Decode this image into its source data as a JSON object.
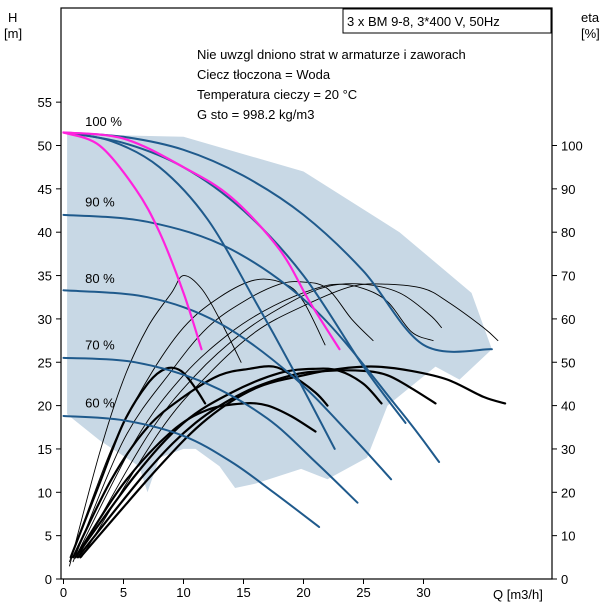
{
  "chart_data": {
    "type": "line",
    "title": "3 x BM 9-8, 3*400 V, 50Hz",
    "info_lines": [
      "Nie uwzgl  dniono strat w armaturze i zaworach",
      "Ciecz tłoczona = Woda",
      "Temperatura cieczy = 20 °C",
      "G  sto     = 998.2 kg/m3"
    ],
    "y_left_label_top": "H",
    "y_left_label_unit": "[m]",
    "y_right_label_top": "eta",
    "y_right_label_unit": "[%]",
    "x_label": "Q [m3/h]",
    "x_ticks": [
      "0",
      "5",
      "10",
      "15",
      "20",
      "25",
      "30"
    ],
    "y_left_ticks": [
      "0",
      "5",
      "10",
      "15",
      "20",
      "25",
      "30",
      "35",
      "40",
      "45",
      "50",
      "55"
    ],
    "y_right_ticks": [
      "0",
      "10",
      "20",
      "30",
      "40",
      "50",
      "60",
      "70",
      "80",
      "90",
      "100"
    ],
    "xlim": [
      0,
      38.5
    ],
    "ylim_left": [
      0,
      60
    ],
    "ylim_right": [
      0,
      120
    ],
    "grid": false,
    "colors": {
      "head_curves": "#1f5a8c",
      "system_curves": "#ff22dd",
      "efficiency_curves": "#000000",
      "operating_area": "#c8d8e5"
    },
    "speed_labels": [
      {
        "text": "100 %",
        "q": 1.8,
        "h": 51.8
      },
      {
        "text": "90 %",
        "q": 1.8,
        "h": 42.5
      },
      {
        "text": "80 %",
        "q": 1.8,
        "h": 33.7
      },
      {
        "text": "70 %",
        "q": 1.8,
        "h": 26.0
      },
      {
        "text": "60 %",
        "q": 1.8,
        "h": 19.3
      }
    ],
    "operating_area_polygon": [
      [
        0.3,
        51.3
      ],
      [
        10,
        51
      ],
      [
        20,
        47
      ],
      [
        28,
        40
      ],
      [
        34,
        33
      ],
      [
        35.7,
        26.5
      ],
      [
        33,
        23
      ],
      [
        31,
        24.5
      ],
      [
        27,
        20
      ],
      [
        25.3,
        14
      ],
      [
        22,
        11.5
      ],
      [
        19.8,
        12.7
      ],
      [
        16,
        11
      ],
      [
        14.3,
        10.5
      ],
      [
        13,
        13
      ],
      [
        11,
        15
      ],
      [
        10,
        15
      ],
      [
        8,
        14
      ],
      [
        7,
        10
      ],
      [
        6.3,
        13
      ],
      [
        3,
        16
      ],
      [
        0.3,
        19
      ]
    ],
    "series": [
      {
        "kind": "head",
        "pts": [
          [
            0,
            51.5
          ],
          [
            5,
            51
          ],
          [
            10,
            49.5
          ],
          [
            15,
            46.5
          ],
          [
            20,
            42
          ],
          [
            25,
            35.5
          ],
          [
            30,
            27
          ],
          [
            35.7,
            26.5
          ]
        ]
      },
      {
        "kind": "head",
        "pts": [
          [
            0,
            51.5
          ],
          [
            5,
            50.3
          ],
          [
            10,
            47.5
          ],
          [
            15,
            42.5
          ],
          [
            20,
            35
          ],
          [
            25,
            24.5
          ],
          [
            28.5,
            18
          ]
        ]
      },
      {
        "kind": "head",
        "pts": [
          [
            0,
            51.5
          ],
          [
            4,
            50.5
          ],
          [
            8,
            47.5
          ],
          [
            12,
            41.5
          ],
          [
            16,
            32
          ],
          [
            19,
            24.5
          ],
          [
            22.6,
            15
          ]
        ]
      },
      {
        "kind": "head",
        "pts": [
          [
            0,
            42
          ],
          [
            7,
            41.2
          ],
          [
            14,
            38
          ],
          [
            21,
            31
          ],
          [
            28,
            19.5
          ],
          [
            31.3,
            13.5
          ]
        ]
      },
      {
        "kind": "head",
        "pts": [
          [
            0,
            33.3
          ],
          [
            7,
            32.5
          ],
          [
            13,
            29.5
          ],
          [
            19,
            23.5
          ],
          [
            24,
            16.5
          ],
          [
            27.3,
            11.5
          ]
        ]
      },
      {
        "kind": "head",
        "pts": [
          [
            0,
            25.5
          ],
          [
            6,
            25
          ],
          [
            12,
            22.5
          ],
          [
            17,
            18.5
          ],
          [
            21,
            13.5
          ],
          [
            24.5,
            8.8
          ]
        ]
      },
      {
        "kind": "head",
        "pts": [
          [
            0,
            18.8
          ],
          [
            5,
            18.3
          ],
          [
            10,
            16.5
          ],
          [
            14,
            13.5
          ],
          [
            17.5,
            10
          ],
          [
            21.3,
            6
          ]
        ]
      },
      {
        "kind": "system",
        "pts": [
          [
            0,
            51.5
          ],
          [
            3,
            50
          ],
          [
            6,
            45
          ],
          [
            8,
            40
          ],
          [
            10,
            33
          ],
          [
            11.5,
            26.5
          ]
        ]
      },
      {
        "kind": "system",
        "pts": [
          [
            0,
            51.5
          ],
          [
            5,
            50.8
          ],
          [
            10,
            47.5
          ],
          [
            14,
            44
          ],
          [
            18,
            38
          ],
          [
            20.5,
            32
          ],
          [
            23,
            26.5
          ]
        ]
      },
      {
        "kind": "eff_thin",
        "pts": [
          [
            0.5,
            3
          ],
          [
            3,
            29
          ],
          [
            5,
            46
          ],
          [
            7,
            58
          ],
          [
            9,
            66
          ],
          [
            10,
            70
          ],
          [
            11.5,
            67
          ],
          [
            13,
            60
          ],
          [
            14.8,
            50
          ]
        ]
      },
      {
        "kind": "eff_thin",
        "pts": [
          [
            0.5,
            4
          ],
          [
            4,
            30
          ],
          [
            7,
            46
          ],
          [
            10,
            58
          ],
          [
            13,
            65
          ],
          [
            16,
            69
          ],
          [
            18.5,
            68
          ],
          [
            20,
            64
          ],
          [
            21.8,
            54
          ]
        ]
      },
      {
        "kind": "eff_thin",
        "pts": [
          [
            0.8,
            4
          ],
          [
            5,
            32
          ],
          [
            9,
            48
          ],
          [
            12,
            58
          ],
          [
            15,
            64
          ],
          [
            18,
            68
          ],
          [
            20,
            68.5
          ],
          [
            22,
            67
          ],
          [
            24,
            60
          ],
          [
            25.8,
            55
          ]
        ]
      },
      {
        "kind": "eff_thin",
        "pts": [
          [
            1,
            5
          ],
          [
            6,
            32
          ],
          [
            10,
            47
          ],
          [
            14,
            57
          ],
          [
            17.5,
            63
          ],
          [
            21,
            67
          ],
          [
            23,
            68
          ],
          [
            25,
            67
          ],
          [
            27,
            64
          ],
          [
            29,
            57
          ],
          [
            30.8,
            55
          ]
        ]
      },
      {
        "kind": "eff_thin",
        "pts": [
          [
            1.2,
            5
          ],
          [
            7,
            33
          ],
          [
            11,
            47
          ],
          [
            15,
            57
          ],
          [
            19,
            64
          ],
          [
            22,
            67.5
          ],
          [
            25,
            68
          ],
          [
            28,
            66
          ],
          [
            30.5,
            61
          ],
          [
            31.5,
            58
          ]
        ]
      },
      {
        "kind": "eff_thin",
        "pts": [
          [
            1.5,
            5
          ],
          [
            8,
            34
          ],
          [
            12,
            47
          ],
          [
            16,
            57
          ],
          [
            20,
            63
          ],
          [
            24,
            67.5
          ],
          [
            27,
            68
          ],
          [
            30,
            67
          ],
          [
            32,
            64
          ],
          [
            35,
            58
          ],
          [
            36.2,
            55
          ]
        ]
      },
      {
        "kind": "eff_thick",
        "pts": [
          [
            0.6,
            5
          ],
          [
            3,
            22
          ],
          [
            5,
            36
          ],
          [
            7,
            45
          ],
          [
            8.5,
            48.5
          ],
          [
            9.8,
            48
          ],
          [
            11,
            44
          ],
          [
            11.8,
            40.5
          ]
        ]
      },
      {
        "kind": "eff_thick",
        "pts": [
          [
            0.8,
            5
          ],
          [
            4,
            23
          ],
          [
            7,
            35
          ],
          [
            10,
            42
          ],
          [
            13,
            47
          ],
          [
            15.5,
            48.5
          ],
          [
            17.5,
            49
          ],
          [
            19,
            47
          ],
          [
            21,
            43
          ],
          [
            22,
            40
          ]
        ]
      },
      {
        "kind": "eff_thick",
        "pts": [
          [
            1,
            5
          ],
          [
            5,
            22
          ],
          [
            9,
            34
          ],
          [
            12,
            39
          ],
          [
            15,
            40.5
          ],
          [
            17,
            40
          ],
          [
            19,
            37.5
          ],
          [
            21,
            34
          ]
        ]
      },
      {
        "kind": "eff_thick",
        "pts": [
          [
            1,
            5
          ],
          [
            6,
            24
          ],
          [
            10,
            36
          ],
          [
            14,
            43
          ],
          [
            18,
            47.5
          ],
          [
            21,
            48.5
          ],
          [
            23,
            48
          ],
          [
            25,
            45
          ],
          [
            26.5,
            40.5
          ]
        ]
      },
      {
        "kind": "eff_thick",
        "pts": [
          [
            1.2,
            5
          ],
          [
            7,
            25
          ],
          [
            11,
            36
          ],
          [
            15,
            43
          ],
          [
            19,
            47
          ],
          [
            22,
            48
          ],
          [
            25,
            48
          ],
          [
            27,
            47
          ],
          [
            29,
            44
          ],
          [
            31,
            40.5
          ]
        ]
      },
      {
        "kind": "eff_thick",
        "pts": [
          [
            1.4,
            5
          ],
          [
            8,
            26
          ],
          [
            12,
            37
          ],
          [
            16,
            44
          ],
          [
            20,
            47
          ],
          [
            23,
            48.5
          ],
          [
            26,
            49
          ],
          [
            29,
            48
          ],
          [
            32,
            46
          ],
          [
            35,
            42
          ],
          [
            36.8,
            40.5
          ]
        ]
      }
    ]
  }
}
